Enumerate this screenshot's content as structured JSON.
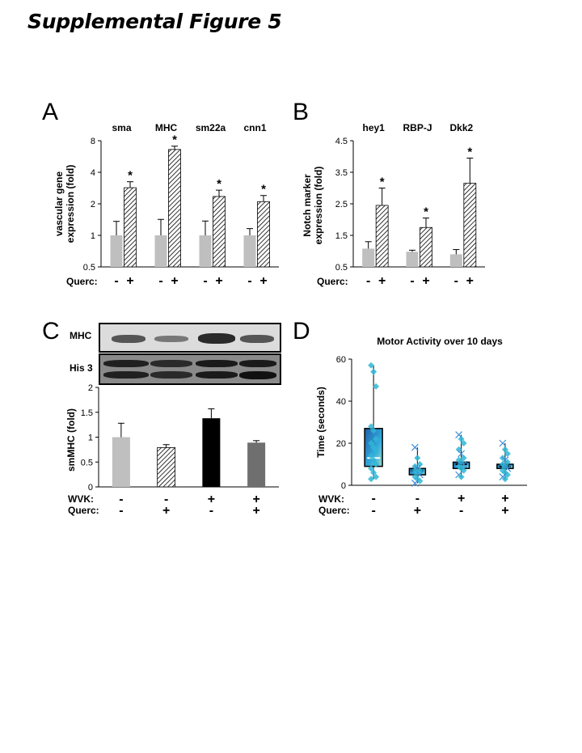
{
  "page": {
    "title": "Supplemental Figure 5"
  },
  "panels": {
    "a": "A",
    "b": "B",
    "c": "C",
    "d": "D"
  },
  "blot": {
    "row1_label": "MHC",
    "row2_label": "His 3"
  },
  "colors": {
    "light_gray": "#bfbfbf",
    "dark_gray": "#6f6f6f",
    "black": "#000000",
    "box_fill": "#33aadd",
    "marker": "#2fb6d6"
  },
  "chart_data": [
    {
      "id": "A",
      "type": "bar",
      "groups": [
        "sma",
        "MHC",
        "sm22a",
        "cnn1"
      ],
      "ylabel": "vascular gene expression (fold)",
      "yticks": [
        "0.5",
        "1",
        "2",
        "4",
        "8"
      ],
      "yscale": "log2",
      "ylim": [
        0.5,
        8
      ],
      "row_label": "Querc:",
      "treatment_signs": [
        "-",
        "+"
      ],
      "series": [
        {
          "name": "-",
          "fill": "solid-gray",
          "values": [
            1.0,
            1.0,
            1.0,
            1.0
          ],
          "errors_upper": [
            1.36,
            1.42,
            1.37,
            1.16
          ]
        },
        {
          "name": "+",
          "fill": "hatched",
          "values": [
            2.85,
            6.6,
            2.35,
            2.1
          ],
          "errors_upper": [
            3.25,
            7.1,
            2.7,
            2.4
          ]
        }
      ],
      "significance": [
        "*",
        "*",
        "*",
        "*"
      ]
    },
    {
      "id": "B",
      "type": "bar",
      "groups": [
        "hey1",
        "RBP-J",
        "Dkk2"
      ],
      "ylabel": "Notch marker expression (fold)",
      "yticks": [
        "0.5",
        "1.5",
        "2.5",
        "3.5",
        "4.5"
      ],
      "ylim": [
        0.5,
        4.5
      ],
      "row_label": "Querc:",
      "treatment_signs": [
        "-",
        "+"
      ],
      "series": [
        {
          "name": "-",
          "fill": "solid-gray",
          "values": [
            1.08,
            0.98,
            0.9
          ],
          "errors_upper": [
            1.3,
            1.03,
            1.05
          ]
        },
        {
          "name": "+",
          "fill": "hatched",
          "values": [
            2.45,
            1.75,
            3.15
          ],
          "errors_upper": [
            3.0,
            2.05,
            3.95
          ]
        }
      ],
      "significance": [
        "*",
        "*",
        "*"
      ]
    },
    {
      "id": "C",
      "type": "bar",
      "ylabel": "smMHC (fold)",
      "yticks": [
        "0",
        "0.5",
        "1",
        "1.5",
        "2"
      ],
      "ylim": [
        0,
        2
      ],
      "row_labels": [
        "WVK:",
        "Querc:"
      ],
      "conditions": [
        {
          "wvk": "-",
          "querc": "-",
          "value": 1.0,
          "error_upper": 1.28,
          "fill": "light-gray"
        },
        {
          "wvk": "-",
          "querc": "+",
          "value": 0.79,
          "error_upper": 0.85,
          "fill": "hatched"
        },
        {
          "wvk": "+",
          "querc": "-",
          "value": 1.38,
          "error_upper": 1.57,
          "fill": "black"
        },
        {
          "wvk": "+",
          "querc": "+",
          "value": 0.89,
          "error_upper": 0.93,
          "fill": "dark-gray"
        }
      ]
    },
    {
      "id": "D",
      "type": "scatter",
      "title": "Motor Activity over 10 days",
      "ylabel": "Time (seconds)",
      "yticks": [
        "0",
        "20",
        "40",
        "60"
      ],
      "ylim": [
        0,
        60
      ],
      "row_labels": [
        "WVK:",
        "Querc:"
      ],
      "conditions": [
        {
          "wvk": "-",
          "querc": "-",
          "q1": 9,
          "median": 13,
          "q3": 27,
          "whisker_low": 3,
          "whisker_high": 57,
          "points": [
            57,
            54,
            47,
            28,
            26,
            22,
            20,
            18,
            16,
            14,
            12,
            10,
            8,
            6,
            4,
            3
          ]
        },
        {
          "wvk": "-",
          "querc": "+",
          "q1": 5,
          "median": 7,
          "q3": 8,
          "whisker_low": 1,
          "whisker_high": 18,
          "points": [
            18,
            13,
            10,
            9,
            8,
            7,
            7,
            6,
            5,
            4,
            3,
            2,
            1
          ]
        },
        {
          "wvk": "+",
          "querc": "-",
          "q1": 8,
          "median": 10,
          "q3": 11,
          "whisker_low": 4,
          "whisker_high": 24,
          "points": [
            24,
            22,
            20,
            17,
            15,
            13,
            12,
            11,
            10,
            9,
            8,
            7,
            5,
            4
          ]
        },
        {
          "wvk": "+",
          "querc": "+",
          "q1": 8,
          "median": 9,
          "q3": 10,
          "whisker_low": 3,
          "whisker_high": 20,
          "points": [
            20,
            17,
            15,
            13,
            12,
            11,
            10,
            9,
            8,
            7,
            6,
            5,
            4,
            3
          ]
        }
      ]
    }
  ]
}
